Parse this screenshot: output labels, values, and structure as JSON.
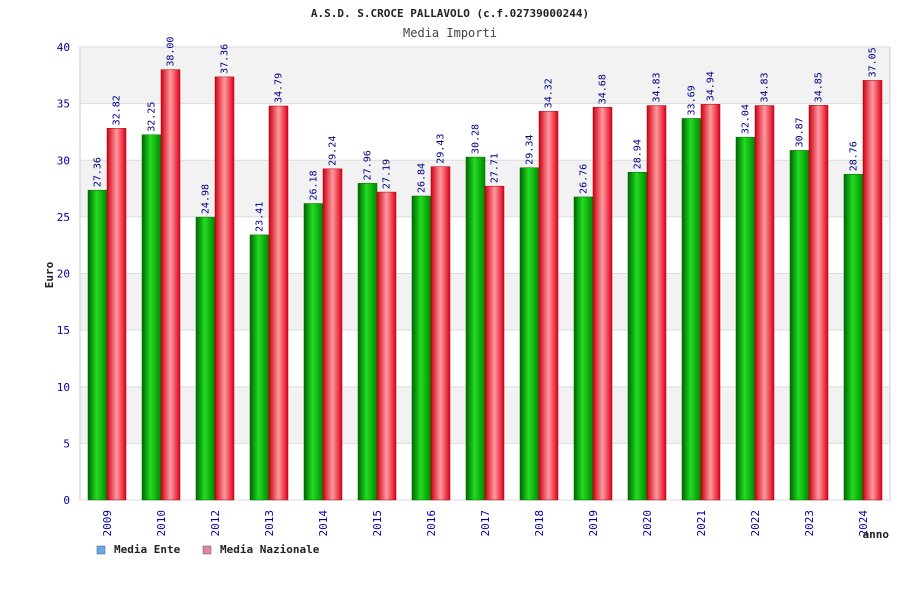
{
  "chart_data": {
    "type": "bar",
    "title": "A.S.D. S.CROCE PALLAVOLO (c.f.02739000244)",
    "subtitle": "Media Importi",
    "xlabel": "anno",
    "ylabel": "Euro",
    "ylim": [
      0,
      40
    ],
    "yticks": [
      0,
      5,
      10,
      15,
      20,
      25,
      30,
      35,
      40
    ],
    "grid": true,
    "legend_position": "bottom-left",
    "categories": [
      "2009",
      "2010",
      "2012",
      "2013",
      "2014",
      "2015",
      "2016",
      "2017",
      "2018",
      "2019",
      "2020",
      "2021",
      "2022",
      "2023",
      "2024"
    ],
    "series": [
      {
        "name": "Media Ente",
        "color": "#00aa00",
        "legend_color": "#66aaee",
        "values": [
          27.36,
          32.25,
          24.98,
          23.41,
          26.18,
          27.96,
          26.84,
          30.28,
          29.34,
          26.76,
          28.94,
          33.69,
          32.04,
          30.87,
          28.76
        ]
      },
      {
        "name": "Media Nazionale",
        "color": "#ee2233",
        "legend_color": "#dd88aa",
        "values": [
          32.82,
          38.0,
          37.36,
          34.79,
          29.24,
          27.19,
          29.43,
          27.71,
          34.32,
          34.68,
          34.83,
          34.94,
          34.83,
          34.85,
          37.05
        ]
      }
    ],
    "value_labels": [
      [
        "27.36",
        "32.25",
        "24.98",
        "23.41",
        "26.18",
        "27.96",
        "26.84",
        "30.28",
        "29.34",
        "26.76",
        "28.94",
        "33.69",
        "32.04",
        "30.87",
        "28.76"
      ],
      [
        "32.82",
        "38.00",
        "37.36",
        "34.79",
        "29.24",
        "27.19",
        "29.43",
        "27.71",
        "34.32",
        "34.68",
        "34.83",
        "34.94",
        "34.83",
        "34.85",
        "37.05"
      ]
    ]
  }
}
